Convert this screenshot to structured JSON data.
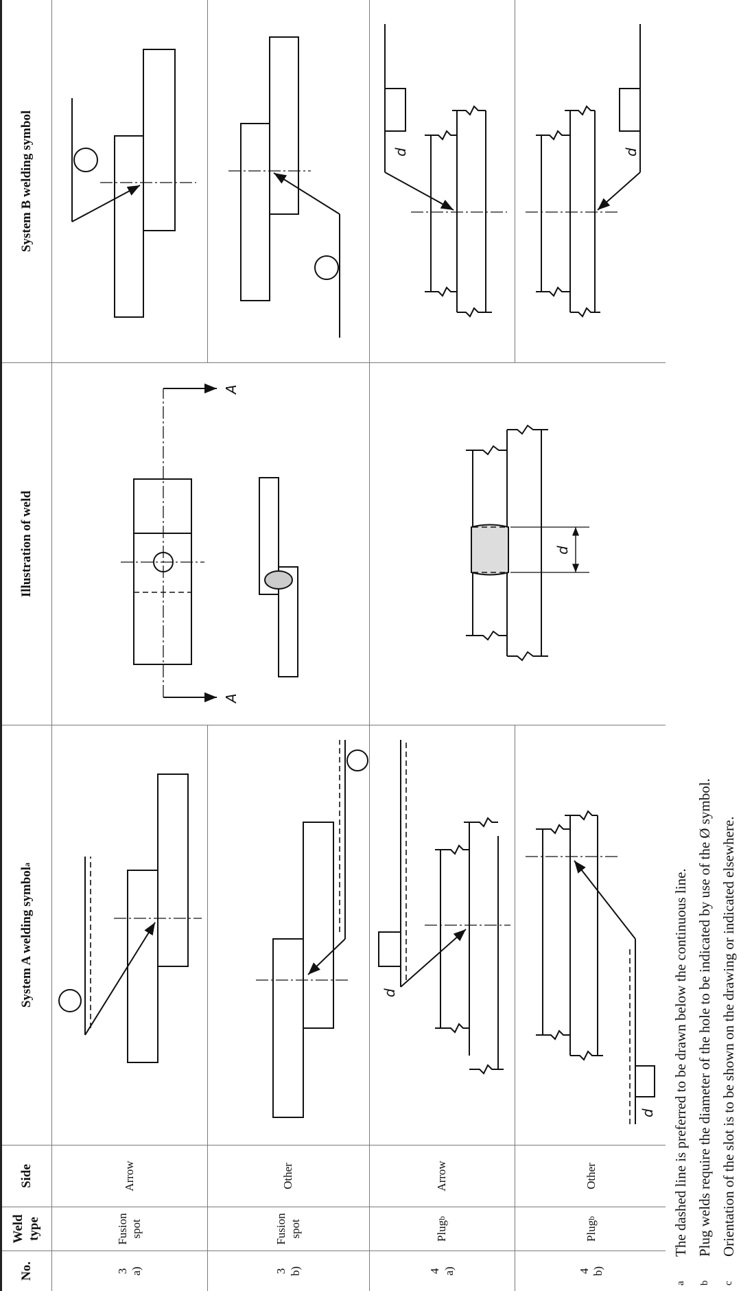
{
  "table": {
    "headers": {
      "no": "No.",
      "weld_type": "Weld type",
      "side": "Side",
      "system_a": "System A welding symbol",
      "system_a_note": "a",
      "illustration": "Illustration of weld",
      "system_b": "System B welding symbol"
    },
    "rows": [
      {
        "no": "3",
        "variant": "a)",
        "weld_type": "Fusion spot",
        "side": "Arrow"
      },
      {
        "no": "3",
        "variant": "b)",
        "weld_type": "Fusion spot",
        "side": "Other"
      },
      {
        "no": "4",
        "variant": "a)",
        "weld_type": "Plug",
        "weld_type_note": "b",
        "side": "Arrow"
      },
      {
        "no": "4",
        "variant": "b)",
        "weld_type": "Plug",
        "weld_type_note": "b",
        "side": "Other"
      }
    ]
  },
  "drawing_labels": {
    "section": "A",
    "dimension": "d"
  },
  "footnotes": [
    {
      "mark": "a",
      "text": "The dashed line is preferred to be drawn below the continuous line."
    },
    {
      "mark": "b",
      "text": "Plug welds require the diameter of the hole to be indicated by use of the Ø symbol."
    },
    {
      "mark": "c",
      "text": "Orientation of the slot is to be shown on the drawing or indicated elsewhere."
    }
  ]
}
